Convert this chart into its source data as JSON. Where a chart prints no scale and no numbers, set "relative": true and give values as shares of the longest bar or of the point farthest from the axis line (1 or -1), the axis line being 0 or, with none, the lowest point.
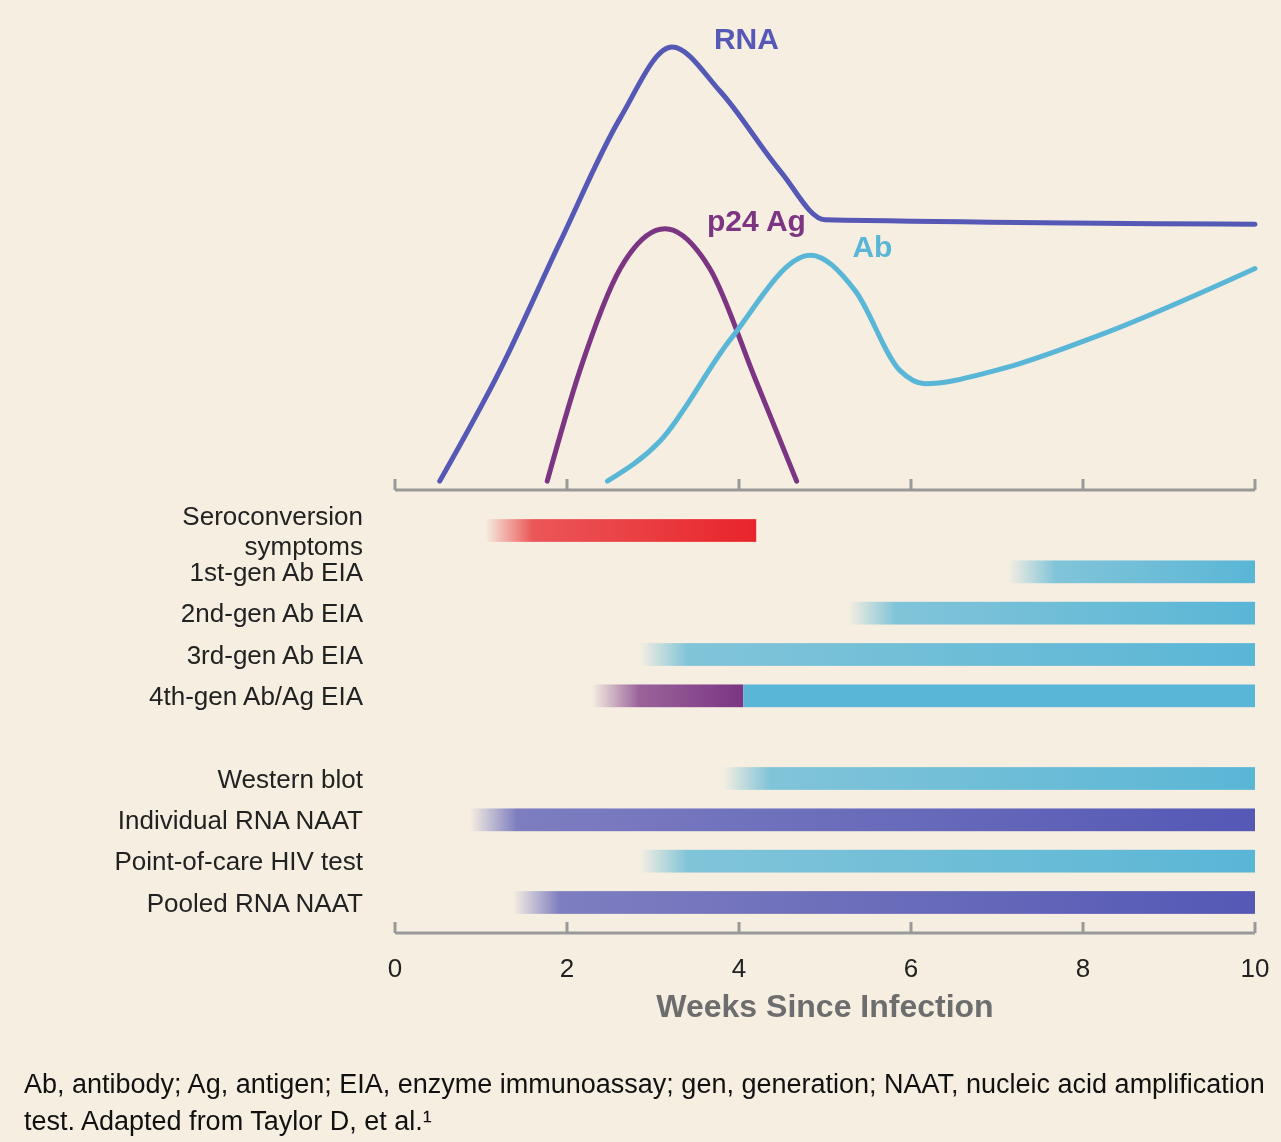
{
  "chart_data": [
    {
      "type": "line",
      "relative": true,
      "xlim": [
        0,
        10
      ],
      "xticks": [
        0,
        2,
        4,
        6,
        8,
        10
      ],
      "tick_labels": false,
      "marker": "none",
      "line_style": "solid",
      "series": [
        {
          "name": "RNA",
          "color": "#5558b5",
          "x": [
            0.52,
            1.22,
            1.92,
            2.62,
            3.22,
            3.78,
            4.48,
            5.0,
            10
          ],
          "values": [
            0.02,
            0.27,
            0.56,
            0.84,
            1.0,
            0.9,
            0.72,
            0.61,
            0.6
          ]
        },
        {
          "name": "p24 Ag",
          "color": "#7b3583",
          "x": [
            1.77,
            2.15,
            2.62,
            3.14,
            3.66,
            4.19,
            4.67
          ],
          "values": [
            0.02,
            0.27,
            0.5,
            0.59,
            0.5,
            0.25,
            0.02
          ]
        },
        {
          "name": "Ab",
          "color": "#5ab6d6",
          "x": [
            2.47,
            3.08,
            3.9,
            4.83,
            5.35,
            5.87,
            6.16,
            6.99,
            8.2,
            10
          ],
          "values": [
            0.02,
            0.11,
            0.34,
            0.53,
            0.45,
            0.27,
            0.24,
            0.27,
            0.35,
            0.5
          ]
        }
      ]
    },
    {
      "type": "bar",
      "orientation": "horizontal",
      "xlim": [
        0,
        10
      ],
      "xticks": [
        0,
        2,
        4,
        6,
        8,
        10
      ],
      "xlabel": "Weeks Since Infection",
      "categories": [
        "Seroconversion symptoms",
        "1st-gen Ab EIA",
        "2nd-gen Ab EIA",
        "3rd-gen Ab EIA",
        "4th-gen Ab/Ag EIA",
        null,
        "Western blot",
        "Individual RNA NAAT",
        "Point-of-care HIV test",
        "Pooled RNA NAAT"
      ],
      "series": [
        {
          "base": [
            1.05,
            7.13,
            5.27,
            2.85,
            2.29,
            null,
            3.81,
            0.87,
            2.85,
            1.37
          ],
          "colors": [
            "#e8242b",
            "#5ab6d6",
            "#5ab6d6",
            "#5ab6d6",
            "#7b3583",
            null,
            "#5ab6d6",
            "#5558b5",
            "#5ab6d6",
            "#5558b5"
          ],
          "values": [
            3.15,
            2.87,
            4.73,
            7.15,
            1.76,
            null,
            6.19,
            9.13,
            7.15,
            8.63
          ]
        },
        {
          "base": [
            null,
            null,
            null,
            null,
            4.05,
            null,
            null,
            null,
            null,
            null
          ],
          "colors": [
            null,
            null,
            null,
            null,
            "#5ab6d6",
            null,
            null,
            null,
            null,
            null
          ],
          "values": [
            null,
            null,
            null,
            null,
            5.95,
            null,
            null,
            null,
            null,
            null
          ]
        }
      ],
      "annotations": [
        "Ab, antibody; Ag, antigen; EIA, enzyme immunoassay; gen, generation; NAAT, nucleic acid amplification test. Adapted from Taylor D, et al.¹"
      ]
    }
  ]
}
